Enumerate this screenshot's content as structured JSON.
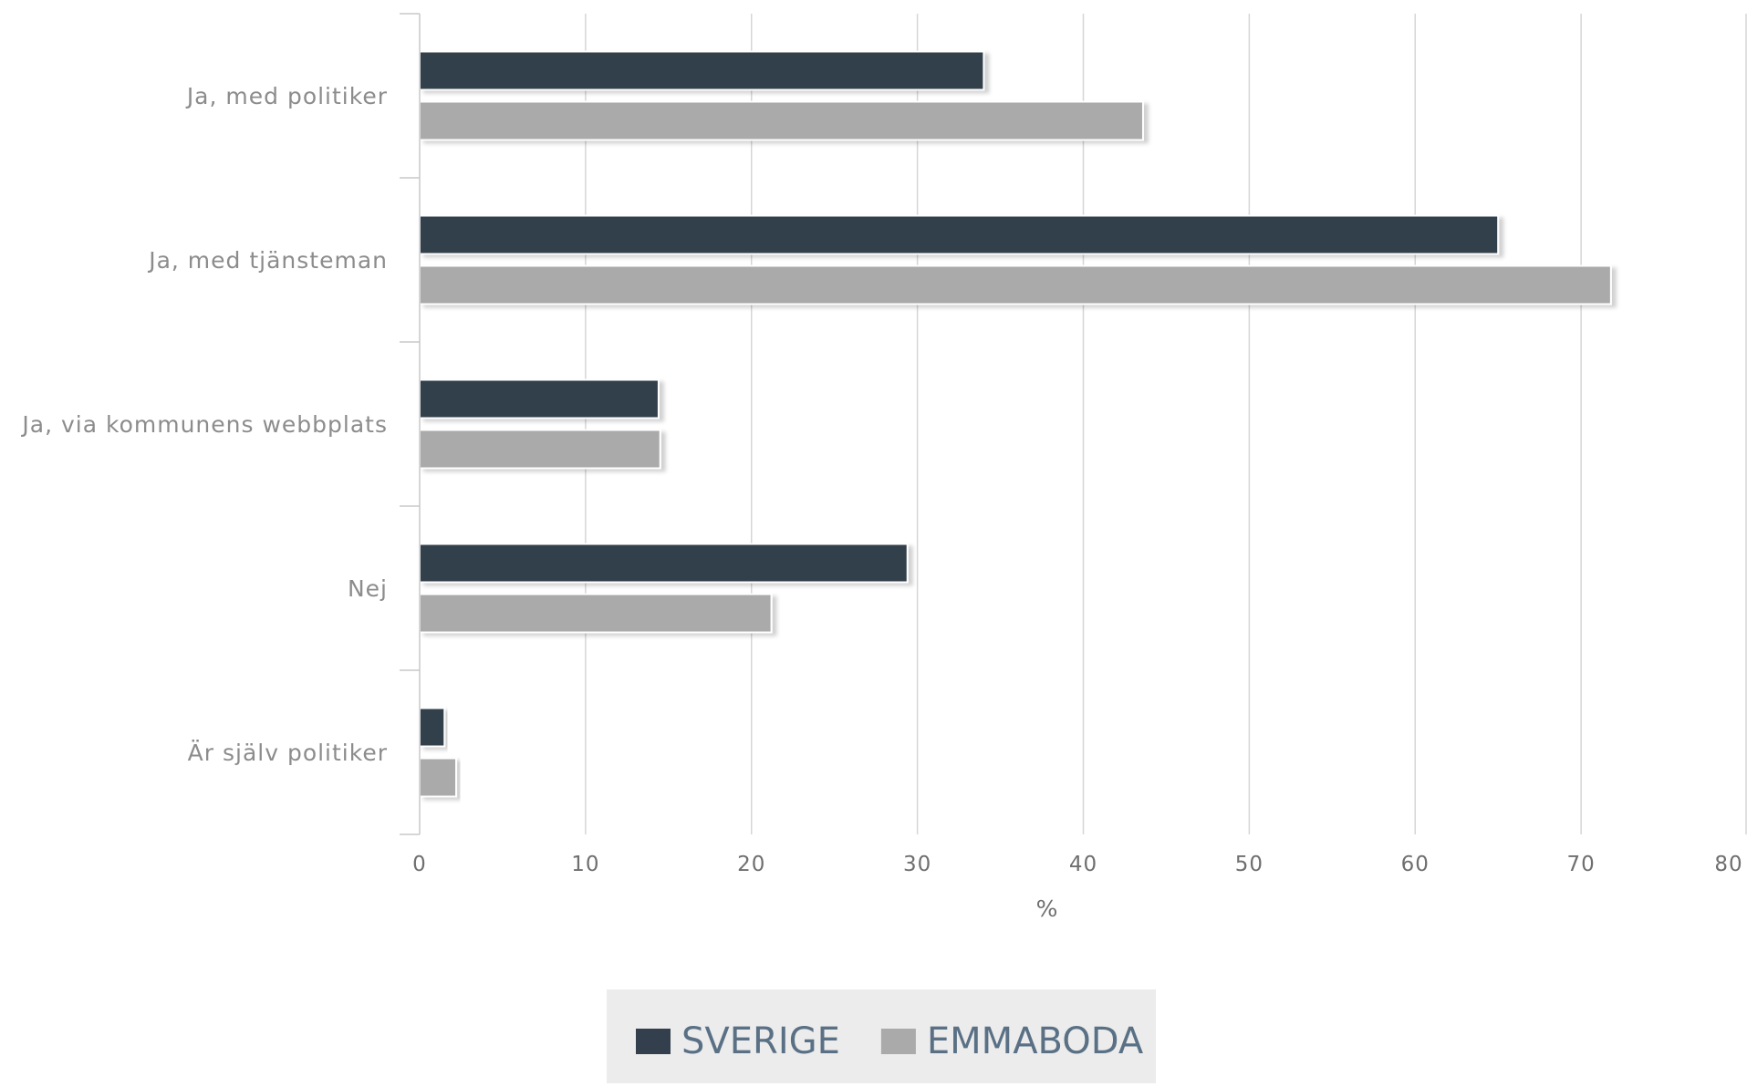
{
  "chart_data": {
    "type": "bar",
    "orientation": "horizontal",
    "categories": [
      "Ja, med politiker",
      "Ja, med tjänsteman",
      "Ja, via kommunens webbplats",
      "Nej",
      "Är själv politiker"
    ],
    "series": [
      {
        "name": "SVERIGE",
        "color": "#333f4c",
        "values": [
          34,
          65,
          14.4,
          29.4,
          1.5
        ]
      },
      {
        "name": "EMMABODA",
        "color": "#aaaaaa",
        "values": [
          43.6,
          71.8,
          14.5,
          21.2,
          2.2
        ]
      }
    ],
    "xlabel": "%",
    "xlim": [
      0,
      80
    ],
    "xticks": [
      0,
      10,
      20,
      30,
      40,
      50,
      60,
      70,
      80
    ],
    "grid": true,
    "legend_position": "bottom-center"
  }
}
